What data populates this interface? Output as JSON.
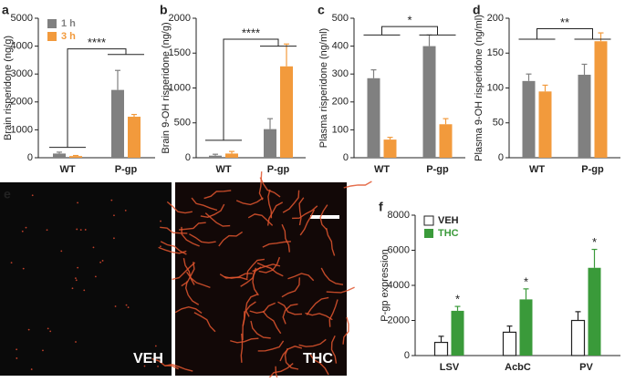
{
  "chart_data": [
    {
      "type": "bar",
      "panel_label": "a",
      "ylabel": "Brain risperidone (ng/g)",
      "categories": [
        "WT",
        "P-gp"
      ],
      "series": [
        {
          "name": "1 h",
          "color": "#808080",
          "values": [
            150,
            2430
          ],
          "errors": [
            50,
            700
          ]
        },
        {
          "name": "3 h",
          "color": "#f29a3c",
          "values": [
            60,
            1470
          ],
          "errors": [
            20,
            80
          ]
        }
      ],
      "ylim": [
        0,
        5000
      ],
      "yticks": [
        0,
        1000,
        2000,
        3000,
        4000,
        5000
      ],
      "legend": "upper left",
      "annotations": [
        "****"
      ]
    },
    {
      "type": "bar",
      "panel_label": "b",
      "ylabel": "Brain 9-OH risperidone (ng/g)",
      "categories": [
        "WT",
        "P-gp"
      ],
      "series": [
        {
          "name": "1 h",
          "color": "#808080",
          "values": [
            30,
            410
          ],
          "errors": [
            20,
            150
          ]
        },
        {
          "name": "3 h",
          "color": "#f29a3c",
          "values": [
            60,
            1310
          ],
          "errors": [
            30,
            320
          ]
        }
      ],
      "ylim": [
        0,
        2000
      ],
      "yticks": [
        0,
        500,
        1000,
        1500,
        2000
      ],
      "annotations": [
        "****"
      ]
    },
    {
      "type": "bar",
      "panel_label": "c",
      "ylabel": "Plasma risperidone (ng/ml)",
      "categories": [
        "WT",
        "P-gp"
      ],
      "series": [
        {
          "name": "1 h",
          "color": "#808080",
          "values": [
            285,
            400
          ],
          "errors": [
            30,
            40
          ]
        },
        {
          "name": "3 h",
          "color": "#f29a3c",
          "values": [
            65,
            120
          ],
          "errors": [
            8,
            20
          ]
        }
      ],
      "ylim": [
        0,
        500
      ],
      "yticks": [
        0,
        100,
        200,
        300,
        400,
        500
      ],
      "annotations": [
        "*"
      ]
    },
    {
      "type": "bar",
      "panel_label": "d",
      "ylabel": "Plasma 9-OH risperidone (ng/ml)",
      "categories": [
        "WT",
        "P-gp"
      ],
      "series": [
        {
          "name": "1 h",
          "color": "#808080",
          "values": [
            110,
            119
          ],
          "errors": [
            10,
            15
          ]
        },
        {
          "name": "3 h",
          "color": "#f29a3c",
          "values": [
            95,
            167
          ],
          "errors": [
            9,
            12
          ]
        }
      ],
      "ylim": [
        0,
        200
      ],
      "yticks": [
        0,
        50,
        100,
        150,
        200
      ],
      "annotations": [
        "**"
      ]
    },
    {
      "type": "bar",
      "panel_label": "f",
      "ylabel": "P-gp  expression",
      "categories": [
        "LSV",
        "AcbC",
        "PV"
      ],
      "series": [
        {
          "name": "VEH",
          "color": "#ffffff",
          "edgecolor": "#222222",
          "values": [
            750,
            1330,
            2000
          ],
          "errors": [
            350,
            350,
            500
          ]
        },
        {
          "name": "THC",
          "color": "#3a9a3a",
          "values": [
            2550,
            3200,
            5000
          ],
          "errors": [
            250,
            600,
            1050
          ]
        }
      ],
      "ylim": [
        0,
        8000
      ],
      "yticks": [
        0,
        2000,
        4000,
        6000,
        8000
      ],
      "legend": "upper left",
      "annotations": [
        "*",
        "*",
        "*"
      ]
    }
  ],
  "image_panel": {
    "panel_label": "e",
    "left_label": "VEH",
    "right_label": "THC"
  }
}
